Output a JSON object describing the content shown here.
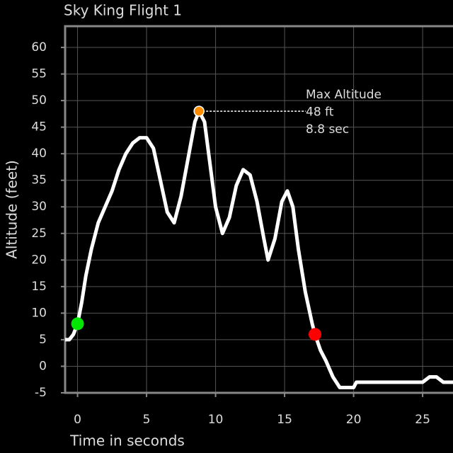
{
  "chart_data": {
    "type": "line",
    "title": "Sky King Flight 1",
    "x_label": "Time in seconds",
    "y_label": "Altitude (feet)",
    "x": [
      -0.9,
      -0.6,
      -0.3,
      0,
      0.3,
      0.6,
      1,
      1.5,
      2,
      2.5,
      3,
      3.5,
      4,
      4.5,
      5,
      5.5,
      6,
      6.5,
      7,
      7.5,
      8,
      8.5,
      8.8,
      9.2,
      9.6,
      10,
      10.5,
      11,
      11.5,
      12,
      12.5,
      13,
      13.5,
      13.8,
      14.3,
      14.8,
      15.2,
      15.6,
      16,
      16.5,
      17,
      17.2,
      17.6,
      18,
      18.5,
      19,
      20,
      20.2,
      25,
      25.5,
      26,
      26.5,
      27.2
    ],
    "series": [
      {
        "color": "#ffffff",
        "values": [
          5,
          5,
          6,
          8,
          12,
          17,
          22,
          27,
          30,
          33,
          37,
          40,
          42,
          43,
          43,
          41,
          35,
          29,
          27,
          32,
          39,
          46,
          48,
          46,
          38,
          30,
          25,
          28,
          34,
          37,
          36,
          31,
          24,
          20,
          24,
          31,
          33,
          30,
          22,
          14,
          8,
          6,
          3,
          1,
          -2,
          -4,
          -4,
          -3,
          -3,
          -2,
          -2,
          -3,
          -3
        ]
      }
    ],
    "markers": [
      {
        "x": 0,
        "y": 8,
        "color": "#00e600"
      },
      {
        "x": 8.8,
        "y": 48,
        "color": "#ff8c00"
      },
      {
        "x": 17.2,
        "y": 6,
        "color": "#ff0000"
      }
    ],
    "annotation": {
      "lines": [
        "Max Altitude",
        "48 ft",
        "8.8  sec"
      ]
    },
    "xlim": [
      -0.9,
      27.2
    ],
    "ylim": [
      -5,
      64
    ],
    "xticks": [
      0,
      5,
      10,
      15,
      20,
      25
    ],
    "yticks": [
      -5,
      0,
      5,
      10,
      15,
      20,
      25,
      30,
      35,
      40,
      45,
      50,
      55,
      60
    ],
    "grid": true
  }
}
